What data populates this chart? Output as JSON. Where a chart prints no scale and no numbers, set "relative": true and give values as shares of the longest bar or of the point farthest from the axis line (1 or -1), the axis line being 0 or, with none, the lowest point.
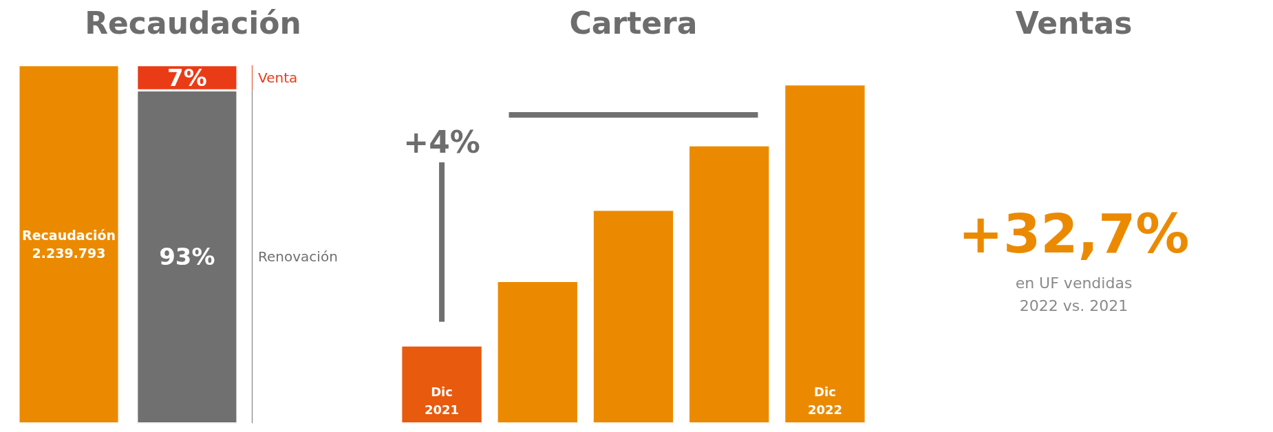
{
  "chart_data": [
    {
      "type": "bar",
      "title": "Recaudación",
      "stacked": true,
      "categories": [
        null,
        null
      ],
      "series": [
        {
          "color": "#eb8a00",
          "values": [
            100,
            null
          ],
          "value_labels": [
            "Recaudación 2.239.793",
            null
          ]
        },
        {
          "name": "Renovación",
          "color": "#707070",
          "values": [
            null,
            93
          ],
          "value_labels": [
            null,
            "93%"
          ]
        },
        {
          "name": "Venta",
          "color": "#ea3b17",
          "values": [
            null,
            7
          ],
          "value_labels": [
            null,
            "7%"
          ]
        }
      ]
    },
    {
      "type": "bar",
      "title": "Cartera",
      "relative": true,
      "categories": [
        "Dic 2021",
        null,
        null,
        null,
        "Dic 2022"
      ],
      "values": [
        0.23,
        0.42,
        0.63,
        0.82,
        1
      ],
      "colors": [
        "#e85a0e",
        "#eb8a00",
        "#eb8a00",
        "#eb8a00",
        "#eb8a00"
      ],
      "annotations": [
        "+4%"
      ]
    },
    {
      "type": "other",
      "title": "Ventas",
      "annotations": [
        "+32,7%",
        "en UF vendidas",
        "2022 vs. 2021"
      ]
    }
  ]
}
